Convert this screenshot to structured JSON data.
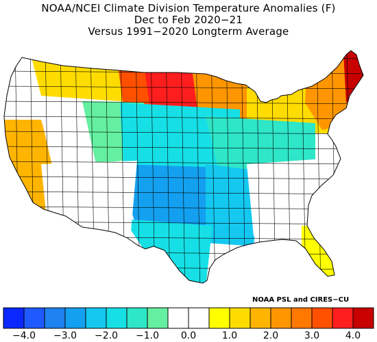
{
  "title": {
    "line1": "NOAA/NCEI Climate Division Temperature Anomalies (F)",
    "line2": "Dec to Feb 2020−21",
    "line3": "Versus 1991−2020 Longterm Average"
  },
  "credit": "NOAA PSL and CIRES−CU",
  "colorbar": {
    "colors": [
      "#0a28ff",
      "#1e5aff",
      "#1e82f0",
      "#14a0f0",
      "#14c8f0",
      "#16e0e6",
      "#2ee6c8",
      "#64f0a0",
      "#ffffff",
      "#ffffff",
      "#ffff00",
      "#ffdc00",
      "#ffb400",
      "#ff9600",
      "#ff7800",
      "#ff5000",
      "#ff1e1e",
      "#c80000"
    ],
    "tick_labels": [
      "−4.0",
      "−3.0",
      "−2.0",
      "−1.0",
      "0.0",
      "1.0",
      "2.0",
      "3.0",
      "4.0"
    ],
    "range": [
      -4.5,
      4.5
    ],
    "step": 0.5
  },
  "map": {
    "region": "contiguous-united-states",
    "regions": [
      {
        "name": "pacific-northwest-coast",
        "anomaly": 0.0
      },
      {
        "name": "montana-west",
        "anomaly": 1.0
      },
      {
        "name": "northern-plains",
        "anomaly": 3.0
      },
      {
        "name": "north-dakota-east",
        "anomaly": 3.5
      },
      {
        "name": "upper-midwest",
        "anomaly": 2.0
      },
      {
        "name": "great-lakes",
        "anomaly": 1.0
      },
      {
        "name": "new-england",
        "anomaly": 2.0
      },
      {
        "name": "maine",
        "anomaly": 4.0
      },
      {
        "name": "california-coast",
        "anomaly": 1.5
      },
      {
        "name": "great-basin",
        "anomaly": 0.0
      },
      {
        "name": "central-rockies",
        "anomaly": -1.0
      },
      {
        "name": "central-plains",
        "anomaly": -2.0
      },
      {
        "name": "midwest-ohio-valley",
        "anomaly": -1.5
      },
      {
        "name": "southern-plains",
        "anomaly": -3.0
      },
      {
        "name": "mississippi-valley",
        "anomaly": -2.5
      },
      {
        "name": "south-texas",
        "anomaly": -2.0
      },
      {
        "name": "southeast",
        "anomaly": -0.5
      },
      {
        "name": "florida",
        "anomaly": 0.5
      },
      {
        "name": "southwest",
        "anomaly": -0.5
      }
    ]
  }
}
